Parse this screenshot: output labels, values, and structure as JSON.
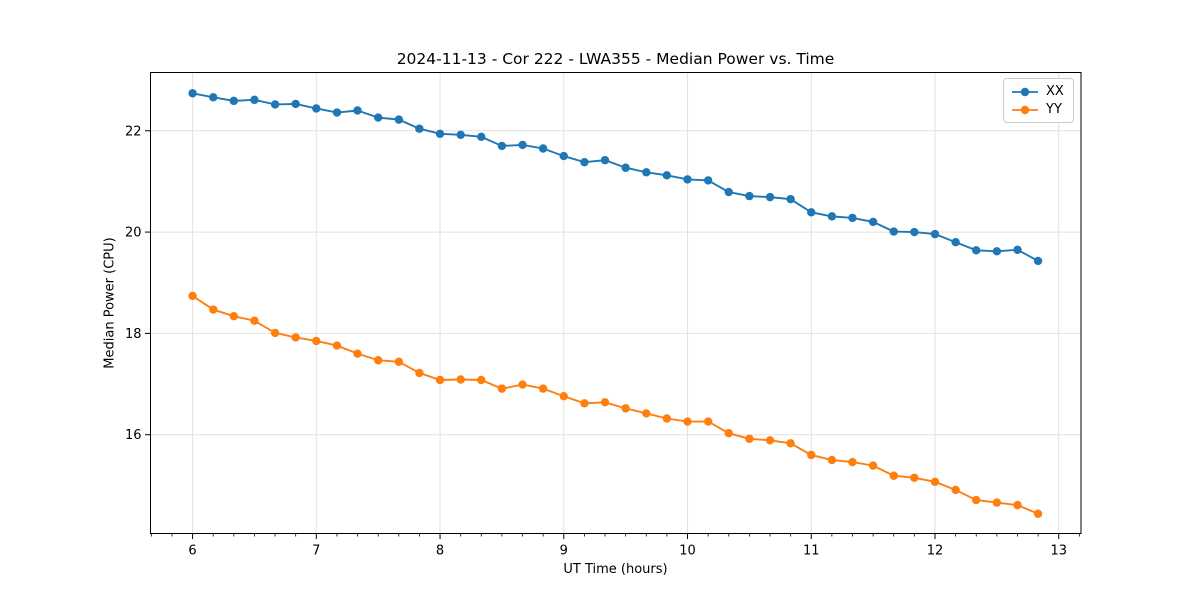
{
  "chart_data": {
    "type": "line",
    "title": "2024-11-13 - Cor 222 - LWA355 - Median Power vs. Time",
    "xlabel": "UT Time (hours)",
    "ylabel": "Median Power (CPU)",
    "xlim": [
      5.66,
      13.18
    ],
    "ylim": [
      14.05,
      23.15
    ],
    "xticks": [
      6,
      7,
      8,
      9,
      10,
      11,
      12,
      13
    ],
    "yticks": [
      16,
      18,
      20,
      22
    ],
    "x_minor_step": 0.1667,
    "grid": true,
    "legend_position": "upper-right",
    "x": [
      6.0,
      6.167,
      6.333,
      6.5,
      6.667,
      6.833,
      7.0,
      7.167,
      7.333,
      7.5,
      7.667,
      7.833,
      8.0,
      8.167,
      8.333,
      8.5,
      8.667,
      8.833,
      9.0,
      9.167,
      9.333,
      9.5,
      9.667,
      9.833,
      10.0,
      10.167,
      10.333,
      10.5,
      10.667,
      10.833,
      11.0,
      11.167,
      11.333,
      11.5,
      11.667,
      11.833,
      12.0,
      12.167,
      12.333,
      12.5,
      12.667,
      12.833
    ],
    "series": [
      {
        "name": "XX",
        "color": "#1f77b4",
        "values": [
          22.74,
          22.66,
          22.59,
          22.61,
          22.52,
          22.53,
          22.44,
          22.36,
          22.4,
          22.26,
          22.22,
          22.04,
          21.94,
          21.92,
          21.88,
          21.7,
          21.72,
          21.65,
          21.5,
          21.38,
          21.42,
          21.27,
          21.18,
          21.12,
          21.04,
          21.02,
          20.79,
          20.71,
          20.69,
          20.65,
          20.39,
          20.31,
          20.28,
          20.2,
          20.01,
          20.0,
          19.96,
          19.8,
          19.64,
          19.62,
          19.65,
          19.43
        ]
      },
      {
        "name": "YY",
        "color": "#ff7f0e",
        "values": [
          18.74,
          18.47,
          18.34,
          18.25,
          18.01,
          17.92,
          17.85,
          17.76,
          17.6,
          17.47,
          17.44,
          17.22,
          17.08,
          17.09,
          17.08,
          16.91,
          16.99,
          16.91,
          16.76,
          16.62,
          16.64,
          16.52,
          16.42,
          16.32,
          16.26,
          16.26,
          16.03,
          15.92,
          15.89,
          15.83,
          15.6,
          15.5,
          15.46,
          15.39,
          15.19,
          15.15,
          15.07,
          14.91,
          14.71,
          14.66,
          14.61,
          14.44
        ]
      }
    ]
  },
  "legend": {
    "items": [
      {
        "label": "XX",
        "color": "#1f77b4"
      },
      {
        "label": "YY",
        "color": "#ff7f0e"
      }
    ]
  },
  "colors": {
    "grid": "#e2e2e2",
    "axis": "#000000",
    "background": "#ffffff",
    "series_xx": "#1f77b4",
    "series_yy": "#ff7f0e"
  }
}
